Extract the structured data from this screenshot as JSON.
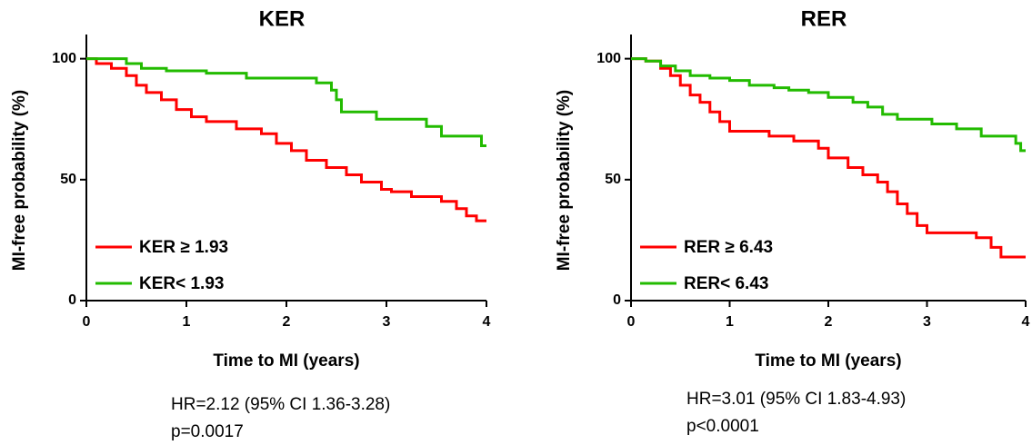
{
  "chart_data": [
    {
      "type": "line",
      "title": "KER",
      "x_label": "Time to MI (years)",
      "y_label": "MI-free probability (%)",
      "xlim": [
        0,
        4
      ],
      "xticks": [
        0,
        1,
        2,
        3,
        4
      ],
      "ylim": [
        0,
        110
      ],
      "yticks": [
        0,
        50,
        100
      ],
      "grid": false,
      "legend": "lower left",
      "series": [
        {
          "name": "KER ≥ 1.93",
          "color": "#ff0000",
          "x": [
            0,
            0.1,
            0.1,
            0.25,
            0.25,
            0.4,
            0.4,
            0.5,
            0.5,
            0.6,
            0.6,
            0.75,
            0.75,
            0.9,
            0.9,
            1.05,
            1.05,
            1.2,
            1.2,
            1.5,
            1.5,
            1.75,
            1.75,
            1.9,
            1.9,
            2.05,
            2.05,
            2.2,
            2.2,
            2.4,
            2.4,
            2.6,
            2.6,
            2.75,
            2.75,
            2.95,
            2.95,
            3.05,
            3.05,
            3.25,
            3.25,
            3.55,
            3.55,
            3.7,
            3.7,
            3.8,
            3.8,
            3.9,
            3.9,
            4
          ],
          "values": [
            100,
            100,
            98,
            98,
            96,
            96,
            93,
            93,
            89,
            89,
            86,
            86,
            83,
            83,
            79,
            79,
            76,
            76,
            74,
            74,
            71,
            71,
            69,
            69,
            65,
            65,
            62,
            62,
            58,
            58,
            55,
            55,
            52,
            52,
            49,
            49,
            46,
            46,
            45,
            45,
            43,
            43,
            41,
            41,
            38,
            38,
            35,
            35,
            33,
            33
          ]
        },
        {
          "name": "KER< 1.93",
          "color": "#22bb00",
          "x": [
            0,
            0.4,
            0.4,
            0.55,
            0.55,
            0.8,
            0.8,
            1.2,
            1.2,
            1.6,
            1.6,
            2.3,
            2.3,
            2.45,
            2.45,
            2.5,
            2.5,
            2.55,
            2.55,
            2.9,
            2.9,
            3.4,
            3.4,
            3.55,
            3.55,
            3.95,
            3.95,
            4
          ],
          "values": [
            100,
            100,
            98,
            98,
            96,
            96,
            95,
            95,
            94,
            94,
            92,
            92,
            90,
            90,
            87,
            87,
            83,
            83,
            78,
            78,
            75,
            75,
            72,
            72,
            68,
            68,
            64,
            64
          ]
        }
      ],
      "annotations": [
        "HR=2.12 (95% CI 1.36-3.28)",
        "p=0.0017"
      ]
    },
    {
      "type": "line",
      "title": "RER",
      "x_label": "Time to MI (years)",
      "y_label": "MI-free probability (%)",
      "xlim": [
        0,
        4
      ],
      "xticks": [
        0,
        1,
        2,
        3,
        4
      ],
      "ylim": [
        0,
        110
      ],
      "yticks": [
        0,
        50,
        100
      ],
      "grid": false,
      "legend": "lower left",
      "series": [
        {
          "name": "RER ≥ 6.43",
          "color": "#ff0000",
          "x": [
            0,
            0.15,
            0.15,
            0.3,
            0.3,
            0.4,
            0.4,
            0.5,
            0.5,
            0.6,
            0.6,
            0.7,
            0.7,
            0.8,
            0.8,
            0.9,
            0.9,
            1,
            1,
            1.4,
            1.4,
            1.65,
            1.65,
            1.9,
            1.9,
            2,
            2,
            2.2,
            2.2,
            2.35,
            2.35,
            2.5,
            2.5,
            2.6,
            2.6,
            2.7,
            2.7,
            2.8,
            2.8,
            2.9,
            2.9,
            3,
            3,
            3.5,
            3.5,
            3.65,
            3.65,
            3.75,
            3.75,
            4
          ],
          "values": [
            100,
            100,
            99,
            99,
            96,
            96,
            93,
            93,
            89,
            89,
            85,
            85,
            82,
            82,
            78,
            78,
            74,
            74,
            70,
            70,
            68,
            68,
            66,
            66,
            63,
            63,
            59,
            59,
            55,
            55,
            52,
            52,
            49,
            49,
            45,
            45,
            40,
            40,
            36,
            36,
            31,
            31,
            28,
            28,
            26,
            26,
            22,
            22,
            18,
            18
          ]
        },
        {
          "name": "RER< 6.43",
          "color": "#22bb00",
          "x": [
            0,
            0.15,
            0.15,
            0.3,
            0.3,
            0.45,
            0.45,
            0.6,
            0.6,
            0.8,
            0.8,
            1,
            1,
            1.2,
            1.2,
            1.45,
            1.45,
            1.6,
            1.6,
            1.8,
            1.8,
            2,
            2,
            2.25,
            2.25,
            2.4,
            2.4,
            2.55,
            2.55,
            2.7,
            2.7,
            3.05,
            3.05,
            3.3,
            3.3,
            3.55,
            3.55,
            3.9,
            3.9,
            3.95,
            3.95,
            4
          ],
          "values": [
            100,
            100,
            99,
            99,
            97,
            97,
            95,
            95,
            93,
            93,
            92,
            92,
            91,
            91,
            89,
            89,
            88,
            88,
            87,
            87,
            86,
            86,
            84,
            84,
            82,
            82,
            80,
            80,
            77,
            77,
            75,
            75,
            73,
            73,
            71,
            71,
            68,
            68,
            65,
            65,
            62,
            62
          ]
        }
      ],
      "annotations": [
        "HR=3.01 (95% CI 1.83-4.93)",
        "p<0.0001"
      ]
    }
  ]
}
